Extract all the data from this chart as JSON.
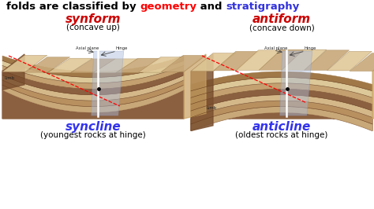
{
  "bg_color": "#ffffff",
  "title_parts": [
    {
      "text": "folds are classified by ",
      "color": "#000000",
      "bold": true
    },
    {
      "text": "geometry",
      "color": "#ff0000",
      "bold": true
    },
    {
      "text": " and ",
      "color": "#000000",
      "bold": true
    },
    {
      "text": "stratigraphy",
      "color": "#3333dd",
      "bold": true
    }
  ],
  "title_fontsize": 9.5,
  "left_top_label": "synform",
  "left_top_sub": "(concave up)",
  "right_top_label": "antiform",
  "right_top_sub": "(concave down)",
  "left_bot_label": "syncline",
  "left_bot_sub": "(youngest rocks at hinge)",
  "right_bot_label": "anticline",
  "right_bot_sub": "(oldest rocks at hinge)",
  "term_color": "#cc0000",
  "term2_color": "#3333ee",
  "label_fontsize": 11,
  "sub_fontsize": 7.5,
  "layer_colors": [
    "#c8a878",
    "#b89060",
    "#d4b88a",
    "#8b6040",
    "#c4a070",
    "#dcc898",
    "#a07848"
  ],
  "top_color": "#c8a878",
  "top_light_color": "#e0c898",
  "side_dark_color": "#7a5030",
  "base_color": "#8b6040"
}
